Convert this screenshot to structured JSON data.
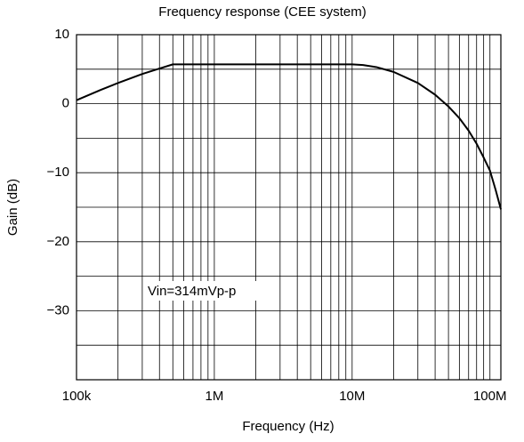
{
  "chart_data": {
    "type": "line",
    "title": "Frequency response (CEE system)",
    "x_label": "Frequency (Hz)",
    "y_label": "Gain (dB)",
    "annotation": "Vin=314mVp-p",
    "x_log": true,
    "grid": true,
    "minor_grid": true,
    "xlim": [
      100000,
      120000000
    ],
    "ylim": [
      -40,
      10
    ],
    "xticks": [
      {
        "value": 100000,
        "label": "100k"
      },
      {
        "value": 1000000,
        "label": "1M"
      },
      {
        "value": 10000000,
        "label": "10M"
      },
      {
        "value": 100000000,
        "label": "100M"
      }
    ],
    "yticks": [
      10,
      0,
      {
        "value": -10,
        "label": "−10"
      },
      {
        "value": -20,
        "label": "−20"
      },
      {
        "value": -30,
        "label": "−30"
      }
    ],
    "yminorticks": [
      5,
      -5,
      -15,
      -25,
      -35
    ],
    "series": [
      {
        "color": "#000000",
        "x": [
          100000,
          150000,
          200000,
          300000,
          400000,
          500000,
          1000000,
          10000000,
          12000000,
          15000000,
          20000000,
          30000000,
          40000000,
          50000000,
          60000000,
          70000000,
          80000000,
          90000000,
          100000000,
          110000000,
          120000000
        ],
        "values": [
          0.5,
          2.0,
          3.0,
          4.3,
          5.1,
          5.7,
          5.7,
          5.7,
          5.6,
          5.3,
          4.6,
          3.0,
          1.3,
          -0.4,
          -2.1,
          -3.9,
          -5.8,
          -7.8,
          -9.7,
          -12.5,
          -15.3
        ]
      }
    ]
  }
}
